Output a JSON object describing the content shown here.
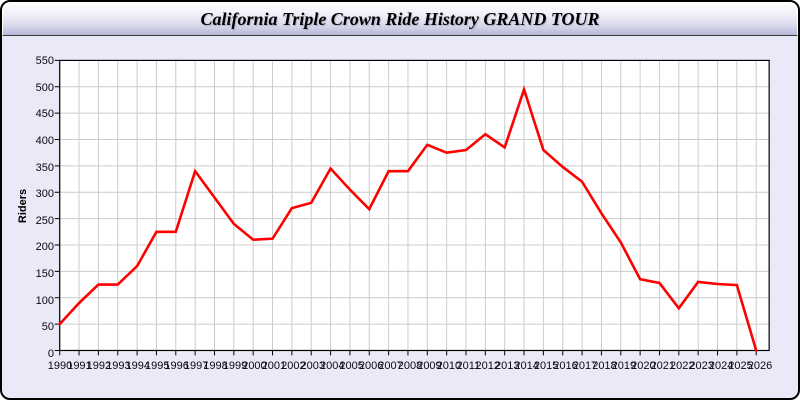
{
  "window": {
    "title": "California Triple Crown Ride History GRAND TOUR"
  },
  "chart_data": {
    "type": "line",
    "title": "California Triple Crown Ride History GRAND TOUR",
    "xlabel": "",
    "ylabel": "Riders",
    "categories": [
      "1990",
      "1991",
      "1992",
      "1993",
      "1994",
      "1995",
      "1996",
      "1997",
      "1998",
      "1999",
      "2000",
      "2001",
      "2002",
      "2003",
      "2004",
      "2005",
      "2006",
      "2007",
      "2008",
      "2009",
      "2010",
      "2011",
      "2012",
      "2013",
      "2014",
      "2015",
      "2016",
      "2017",
      "2018",
      "2019",
      "2020",
      "2021",
      "2022",
      "2023",
      "2024",
      "2025",
      "2026"
    ],
    "series": [
      {
        "name": "Riders",
        "values": [
          50,
          90,
          125,
          125,
          160,
          225,
          225,
          340,
          290,
          240,
          210,
          212,
          270,
          280,
          345,
          305,
          268,
          340,
          340,
          390,
          375,
          380,
          410,
          385,
          495,
          380,
          348,
          320,
          260,
          205,
          135,
          128,
          80,
          130,
          126,
          124,
          0
        ]
      }
    ],
    "ylim": [
      0,
      550
    ],
    "ytick_step": 50,
    "grid": true,
    "legend": "none"
  },
  "colors": {
    "line": "#fe0000",
    "grid": "#cccccc",
    "plot_background": "#ffffff",
    "axis": "#000000",
    "page_background": "#e9e9f7",
    "tick_text": "#0a0a14"
  }
}
